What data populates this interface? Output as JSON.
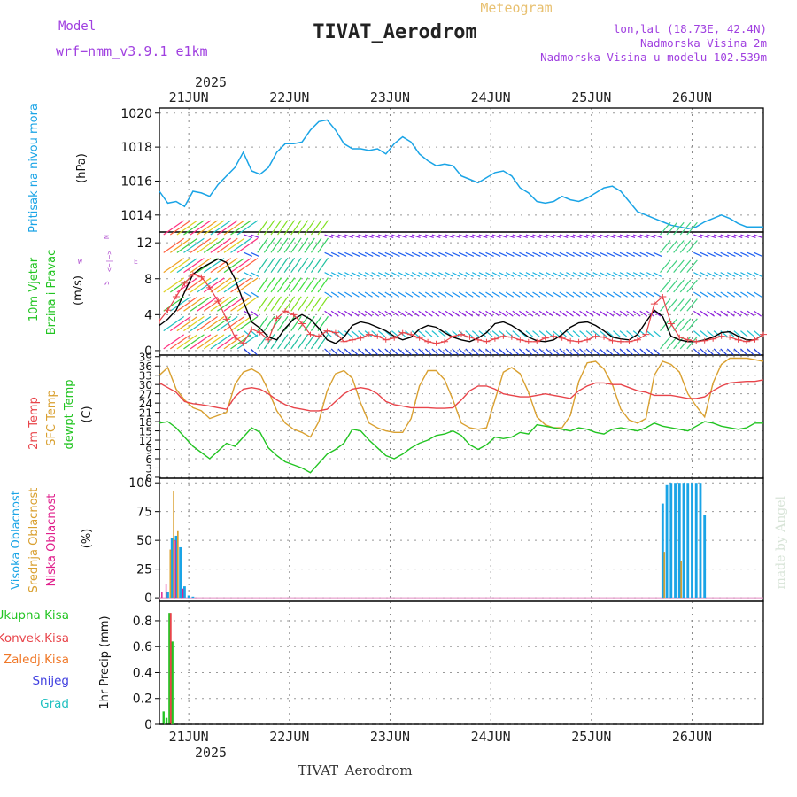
{
  "header": {
    "model_label": "Model",
    "model_name": "wrf−nmm_v3.9.1  e1km",
    "title": "TIVAT_Aerodrom",
    "subtitle": "Meteogram",
    "lonlat": "lon,lat (18.73E, 42.4N)",
    "elev": "Nadmorska Visina 2m",
    "model_elev": "Nadmorska Visina u modelu 102.539m",
    "bottom_title": "TIVAT_Aerodrom",
    "watermark": "made by Angel"
  },
  "colors": {
    "pressure": "#1aa4e6",
    "temp2m": "#e8444a",
    "sfc": "#d9a030",
    "dewpt": "#22c422",
    "cloud_high": "#1aa4e6",
    "cloud_mid": "#d9a030",
    "cloud_low": "#e0208c",
    "precip_total": "#22c422",
    "precip_conv": "#e8444a",
    "precip_ice": "#f07828",
    "precip_snow": "#4040e0",
    "precip_grad": "#20c0c0",
    "wind_label": "#22c422",
    "model_text": "#a040e0"
  },
  "time_axis": {
    "year": "2025",
    "days": [
      "21JUN",
      "22JUN",
      "23JUN",
      "24JUN",
      "25JUN",
      "26JUN"
    ],
    "start_hour_offset": -7,
    "hours_total": 144
  },
  "chart_data": [
    {
      "type": "line",
      "panel": "pressure",
      "ylabel_main": "Pritisak na nivou mora",
      "ylabel_unit": "(hPa)",
      "ylim": [
        1013,
        1020.3
      ],
      "yticks": [
        "1014",
        "1016",
        "1018",
        "1020"
      ],
      "x_hours": [
        -7,
        -5,
        -3,
        -1,
        1,
        3,
        5,
        7,
        9,
        11,
        13,
        15,
        17,
        19,
        21,
        23,
        25,
        27,
        29,
        31,
        33,
        35,
        37,
        39,
        41,
        43,
        45,
        47,
        49,
        51,
        53,
        55,
        57,
        59,
        61,
        63,
        65,
        67,
        69,
        71,
        73,
        75,
        77,
        79,
        81,
        83,
        85,
        87,
        89,
        91,
        93,
        95,
        97,
        99,
        101,
        103,
        105,
        107,
        109,
        111,
        113,
        115,
        117,
        119,
        121,
        123,
        125,
        127,
        129,
        131,
        133,
        135,
        137
      ],
      "values": [
        1015.4,
        1014.7,
        1014.8,
        1014.5,
        1015.4,
        1015.3,
        1015.1,
        1015.8,
        1016.3,
        1016.8,
        1017.7,
        1016.6,
        1016.4,
        1016.8,
        1017.7,
        1018.2,
        1018.2,
        1018.3,
        1019.0,
        1019.5,
        1019.6,
        1019.0,
        1018.2,
        1017.9,
        1017.9,
        1017.8,
        1017.9,
        1017.6,
        1018.2,
        1018.6,
        1018.3,
        1017.6,
        1017.2,
        1016.9,
        1017.0,
        1016.9,
        1016.3,
        1016.1,
        1015.9,
        1016.2,
        1016.5,
        1016.6,
        1016.3,
        1015.6,
        1015.3,
        1014.8,
        1014.7,
        1014.8,
        1015.1,
        1014.9,
        1014.8,
        1015.0,
        1015.3,
        1015.6,
        1015.7,
        1015.4,
        1014.8,
        1014.2,
        1014.0,
        1013.8,
        1013.6,
        1013.4,
        1013.3,
        1013.2,
        1013.3,
        1013.6,
        1013.8,
        1014.0,
        1013.8,
        1013.5,
        1013.3,
        1013.3,
        1013.3
      ]
    },
    {
      "type": "line",
      "panel": "wind",
      "ylabel_main": "10m Vjetar",
      "ylabel_sub": "Brzina i Pravac",
      "ylabel_unit": "(m/s)",
      "ylim": [
        -0.5,
        13.2
      ],
      "yticks": [
        "0",
        "4",
        "8",
        "12"
      ],
      "compass_north": "N",
      "compass_south": "S",
      "compass_east": "E",
      "compass_west": "W",
      "compass_arrows": "<−|−>",
      "x_hours": [
        -7,
        -5,
        -3,
        -1,
        1,
        3,
        5,
        7,
        9,
        11,
        13,
        15,
        17,
        19,
        21,
        23,
        25,
        27,
        29,
        31,
        33,
        35,
        37,
        39,
        41,
        43,
        45,
        47,
        49,
        51,
        53,
        55,
        57,
        59,
        61,
        63,
        65,
        67,
        69,
        71,
        73,
        75,
        77,
        79,
        81,
        83,
        85,
        87,
        89,
        91,
        93,
        95,
        97,
        99,
        101,
        103,
        105,
        107,
        109,
        111,
        113,
        115,
        117,
        119,
        121,
        123,
        125,
        127,
        129,
        131,
        133,
        135,
        137
      ],
      "speed": [
        2.8,
        3.5,
        4.5,
        6.5,
        8.5,
        9.2,
        9.7,
        10.2,
        9.8,
        8.0,
        5.5,
        3.2,
        2.5,
        1.5,
        1.2,
        2.5,
        3.5,
        4.0,
        3.5,
        2.5,
        1.2,
        0.8,
        1.5,
        2.8,
        3.2,
        3.0,
        2.6,
        2.2,
        1.6,
        1.2,
        1.5,
        2.4,
        2.8,
        2.6,
        2.0,
        1.5,
        1.2,
        1.0,
        1.4,
        2.0,
        3.0,
        3.2,
        2.8,
        2.2,
        1.5,
        1.1,
        1.0,
        1.2,
        1.8,
        2.6,
        3.1,
        3.2,
        2.8,
        2.2,
        1.5,
        1.3,
        1.2,
        1.8,
        3.2,
        4.5,
        3.8,
        1.6,
        1.2,
        1.0,
        1.0,
        1.2,
        1.5,
        2.0,
        2.1,
        1.6,
        1.2,
        1.2,
        1.8
      ],
      "gust": [
        3.3,
        4.5,
        6.0,
        7.5,
        8.5,
        8.2,
        7.0,
        5.5,
        3.5,
        1.5,
        0.8,
        2.4,
        2.0,
        1.2,
        3.6,
        4.4,
        4.0,
        3.0,
        1.8,
        1.6,
        2.2,
        2.0,
        1.0,
        1.2,
        1.4,
        1.8,
        1.6,
        1.2,
        1.4,
        2.0,
        1.8,
        1.4,
        1.0,
        0.8,
        1.0,
        1.6,
        1.8,
        1.5,
        1.2,
        1.0,
        1.3,
        1.6,
        1.5,
        1.2,
        1.0,
        1.0,
        1.4,
        1.6,
        1.4,
        1.1,
        1.0,
        1.2,
        1.6,
        1.5,
        1.1,
        1.0,
        1.0,
        1.2,
        1.8,
        5.2,
        6.0,
        3.0,
        1.5,
        1.2,
        1.0,
        1.1,
        1.3,
        1.6,
        1.5,
        1.2,
        1.0,
        1.2,
        1.8
      ]
    },
    {
      "type": "line",
      "panel": "temperature",
      "ylabel_main": "2m Temp",
      "ylabel_sub": "SFC Temp",
      "ylabel_sub2": "dewpt Temp",
      "ylabel_unit": "(C)",
      "ylim": [
        -0.3,
        39.5
      ],
      "yticks": [
        "0",
        "3",
        "6",
        "9",
        "12",
        "15",
        "18",
        "21",
        "24",
        "27",
        "30",
        "33",
        "36",
        "39"
      ],
      "x_hours": [
        -7,
        -5,
        -3,
        -1,
        1,
        3,
        5,
        7,
        9,
        11,
        13,
        15,
        17,
        19,
        21,
        23,
        25,
        27,
        29,
        31,
        33,
        35,
        37,
        39,
        41,
        43,
        45,
        47,
        49,
        51,
        53,
        55,
        57,
        59,
        61,
        63,
        65,
        67,
        69,
        71,
        73,
        75,
        77,
        79,
        81,
        83,
        85,
        87,
        89,
        91,
        93,
        95,
        97,
        99,
        101,
        103,
        105,
        107,
        109,
        111,
        113,
        115,
        117,
        119,
        121,
        123,
        125,
        127,
        129,
        131,
        133,
        135,
        137
      ],
      "temp2m": [
        30.5,
        29.0,
        27.5,
        24.5,
        23.8,
        23.5,
        23.0,
        22.5,
        22.0,
        26.0,
        28.5,
        29.0,
        28.5,
        27.0,
        25.0,
        23.5,
        22.5,
        22.0,
        21.5,
        21.5,
        22.0,
        24.5,
        27.0,
        28.5,
        29.0,
        28.5,
        27.0,
        24.5,
        23.5,
        23.0,
        22.5,
        22.5,
        22.5,
        22.3,
        22.3,
        22.5,
        25.0,
        28.0,
        29.5,
        29.5,
        28.5,
        27.0,
        26.5,
        26.0,
        26.0,
        26.5,
        27.0,
        26.5,
        26.0,
        25.5,
        28.0,
        29.5,
        30.5,
        30.5,
        30.0,
        30.0,
        29.0,
        28.0,
        27.5,
        26.5,
        26.5,
        26.5,
        26.0,
        25.5,
        25.5,
        26.0,
        28.0,
        29.5,
        30.5,
        30.8,
        31.0,
        31.0,
        31.5
      ],
      "sfc": [
        33.0,
        35.5,
        28.5,
        25.0,
        22.5,
        21.5,
        19.0,
        20.0,
        21.0,
        30.0,
        34.0,
        35.0,
        33.5,
        28.0,
        21.5,
        17.5,
        15.5,
        14.5,
        13.0,
        18.0,
        28.0,
        33.5,
        34.5,
        32.0,
        24.0,
        17.5,
        16.0,
        15.0,
        14.5,
        14.5,
        19.0,
        29.5,
        34.5,
        34.5,
        31.5,
        25.0,
        17.5,
        16.0,
        15.5,
        16.0,
        25.0,
        34.0,
        35.5,
        33.5,
        27.5,
        19.5,
        17.0,
        16.0,
        16.0,
        20.0,
        31.0,
        37.0,
        37.5,
        35.0,
        30.0,
        22.0,
        18.5,
        17.5,
        19.0,
        33.0,
        37.5,
        36.5,
        34.0,
        27.0,
        23.0,
        19.5,
        30.5,
        36.5,
        38.5,
        38.5,
        38.5,
        38.0,
        37.5
      ],
      "dewpt": [
        17.5,
        18.0,
        16.0,
        13.0,
        10.0,
        8.0,
        6.0,
        8.5,
        11.0,
        10.0,
        13.0,
        16.0,
        14.5,
        9.5,
        7.0,
        5.0,
        4.0,
        3.0,
        1.5,
        4.5,
        7.5,
        9.0,
        11.0,
        15.5,
        15.0,
        12.0,
        9.5,
        7.0,
        6.0,
        7.5,
        9.5,
        11.0,
        12.0,
        13.5,
        14.0,
        15.0,
        13.5,
        10.5,
        9.0,
        10.5,
        13.0,
        12.5,
        13.0,
        14.5,
        14.0,
        17.0,
        16.5,
        16.0,
        15.5,
        15.0,
        16.0,
        15.5,
        14.5,
        14.0,
        15.5,
        16.0,
        15.5,
        15.0,
        16.0,
        17.5,
        16.5,
        16.0,
        15.5,
        15.0,
        16.5,
        18.0,
        17.5,
        16.5,
        16.0,
        15.5,
        16.0,
        17.5,
        17.5
      ]
    },
    {
      "type": "bar",
      "panel": "cloud",
      "ylabel_main": "Visoka Oblacnost",
      "ylabel_sub": "Srednja Oblacnost",
      "ylabel_sub2": "Niska Oblacnost",
      "ylabel_unit": "(%)",
      "ylim": [
        -3,
        104
      ],
      "yticks": [
        "0",
        "25",
        "50",
        "75",
        "100"
      ],
      "high": [
        {
          "h": -5,
          "v": 5
        },
        {
          "h": -4,
          "v": 52
        },
        {
          "h": -3,
          "v": 54
        },
        {
          "h": -2,
          "v": 44
        },
        {
          "h": -1,
          "v": 10
        },
        {
          "h": 0,
          "v": 2
        },
        {
          "h": 1,
          "v": 1
        },
        {
          "h": 113,
          "v": 82
        },
        {
          "h": 114,
          "v": 98
        },
        {
          "h": 115,
          "v": 100
        },
        {
          "h": 116,
          "v": 100
        },
        {
          "h": 117,
          "v": 100
        },
        {
          "h": 118,
          "v": 100
        },
        {
          "h": 119,
          "v": 100
        },
        {
          "h": 120,
          "v": 100
        },
        {
          "h": 121,
          "v": 100
        },
        {
          "h": 122,
          "v": 100
        },
        {
          "h": 123,
          "v": 72
        }
      ],
      "mid": [
        {
          "h": -4.4,
          "v": 42
        },
        {
          "h": -3.6,
          "v": 93
        },
        {
          "h": -2.6,
          "v": 58
        },
        {
          "h": 113.4,
          "v": 40
        },
        {
          "h": 117.4,
          "v": 32
        }
      ],
      "low": [
        {
          "h": -6.4,
          "v": 5
        },
        {
          "h": -5.4,
          "v": 12
        },
        {
          "h": -3.2,
          "v": 50
        },
        {
          "h": -1.4,
          "v": 8
        }
      ]
    },
    {
      "type": "bar",
      "panel": "precip",
      "ylabel_unit": "1hr Precip (mm)",
      "legend": [
        "Ukupna Kisa",
        "Konvek.Kisa",
        "Zaledj.Kisa",
        "Snijeg",
        "Grad"
      ],
      "ylim": [
        0,
        0.95
      ],
      "yticks": [
        "0",
        "0.2",
        "0.4",
        "0.6",
        "0.8"
      ],
      "total": [
        {
          "h": -6,
          "v": 0.1
        },
        {
          "h": -5.3,
          "v": 0.05
        },
        {
          "h": -4.6,
          "v": 0.86
        },
        {
          "h": -3.9,
          "v": 0.64
        }
      ],
      "conv": [
        {
          "h": -4.3,
          "v": 0.86
        }
      ]
    }
  ]
}
